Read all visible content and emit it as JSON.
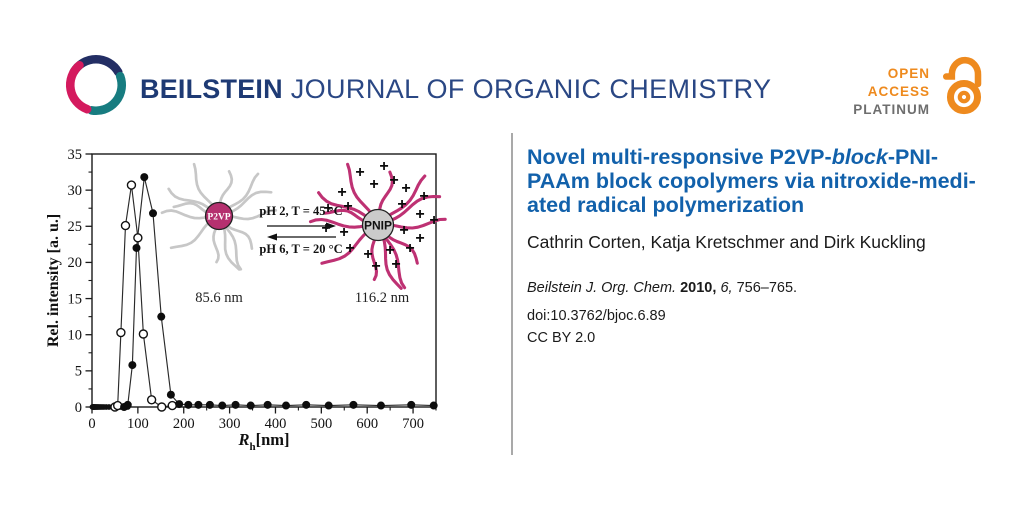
{
  "header": {
    "brand": "BEILSTEIN",
    "journal_name": "JOURNAL OF ORGANIC CHEMISTRY",
    "badge": {
      "open": "OPEN",
      "access": "ACCESS",
      "platinum": "PLATINUM"
    },
    "colors": {
      "orange": "#ee8a1e",
      "navy": "#232e64",
      "teal": "#177c80",
      "crimson": "#d41a5e",
      "platinum_gray": "#6e6e6e",
      "title_blue": "#1261ab"
    }
  },
  "article": {
    "title_line1_pre": "Novel multi-responsive P2VP-",
    "title_line1_italic": "block",
    "title_line1_post": "-PNI-",
    "title_line2": "PAAm block copolymers via nitroxide-medi-",
    "title_line3": "ated radical polymerization",
    "authors": "Cathrin Corten, Katja Kretschmer and Dirk Kuckling",
    "citation": {
      "journal": "Beilstein J. Org. Chem.",
      "year": "2010,",
      "volume": "6,",
      "pages": "756–765."
    },
    "doi": "doi:10.3762/bjoc.6.89",
    "license": "CC BY 2.0"
  },
  "chart_data": {
    "type": "scatter",
    "ylabel": "Rel. intensity [a. u.]",
    "xlabel_main": "R",
    "xlabel_sub": "h",
    "xlabel_unit": "[nm]",
    "xlim": [
      0,
      750
    ],
    "ylim": [
      0,
      35
    ],
    "x_ticks": [
      0,
      100,
      200,
      300,
      400,
      500,
      600,
      700
    ],
    "y_ticks": [
      0,
      5,
      10,
      15,
      20,
      25,
      30,
      35
    ],
    "x_minor_step": 50,
    "y_minor_step": 2.5,
    "grid": false,
    "baseline_x": [
      1,
      2,
      3,
      4,
      5,
      6,
      7.5,
      9,
      11,
      13,
      15.5,
      18.5,
      22,
      26,
      31,
      37,
      44,
      52,
      62,
      70,
      78
    ],
    "series": [
      {
        "name": "micelles at pH 6, T = 20 °C (85.6 nm)",
        "marker": "open-circle",
        "x": [
          50,
          56,
          63,
          73,
          86,
          100,
          112,
          130,
          152,
          175
        ],
        "y": [
          0,
          0.2,
          10.3,
          25.1,
          30.7,
          23.4,
          10.1,
          1.0,
          0,
          0.2
        ]
      },
      {
        "name": "micelles at pH 2, T = 45 °C (116.2 nm)",
        "marker": "filled-circle",
        "x": [
          70,
          78,
          88,
          97,
          114,
          133,
          151,
          172,
          190,
          210,
          232,
          257,
          284,
          313,
          346,
          383,
          423,
          467,
          516,
          570,
          630,
          696,
          745
        ],
        "y": [
          0,
          0.3,
          5.8,
          22.0,
          31.8,
          26.8,
          12.5,
          1.7,
          0.4,
          0.3,
          0.3,
          0.3,
          0.2,
          0.3,
          0.2,
          0.3,
          0.2,
          0.3,
          0.2,
          0.3,
          0.2,
          0.3,
          0.2
        ]
      }
    ],
    "inset": {
      "left_micelle": {
        "core_label": "P2VP",
        "size_label": "85.6 nm",
        "core_color": "#b5306f",
        "arm_color": "#c7c7c7"
      },
      "right_micelle": {
        "core_label": "PNIP",
        "size_label": "116.2 nm",
        "core_color": "#cbcbcb",
        "arm_color": "#be3173"
      },
      "forward_label": "pH 2, T = 45 °C",
      "reverse_label": "pH  6, T = 20 °C"
    }
  }
}
